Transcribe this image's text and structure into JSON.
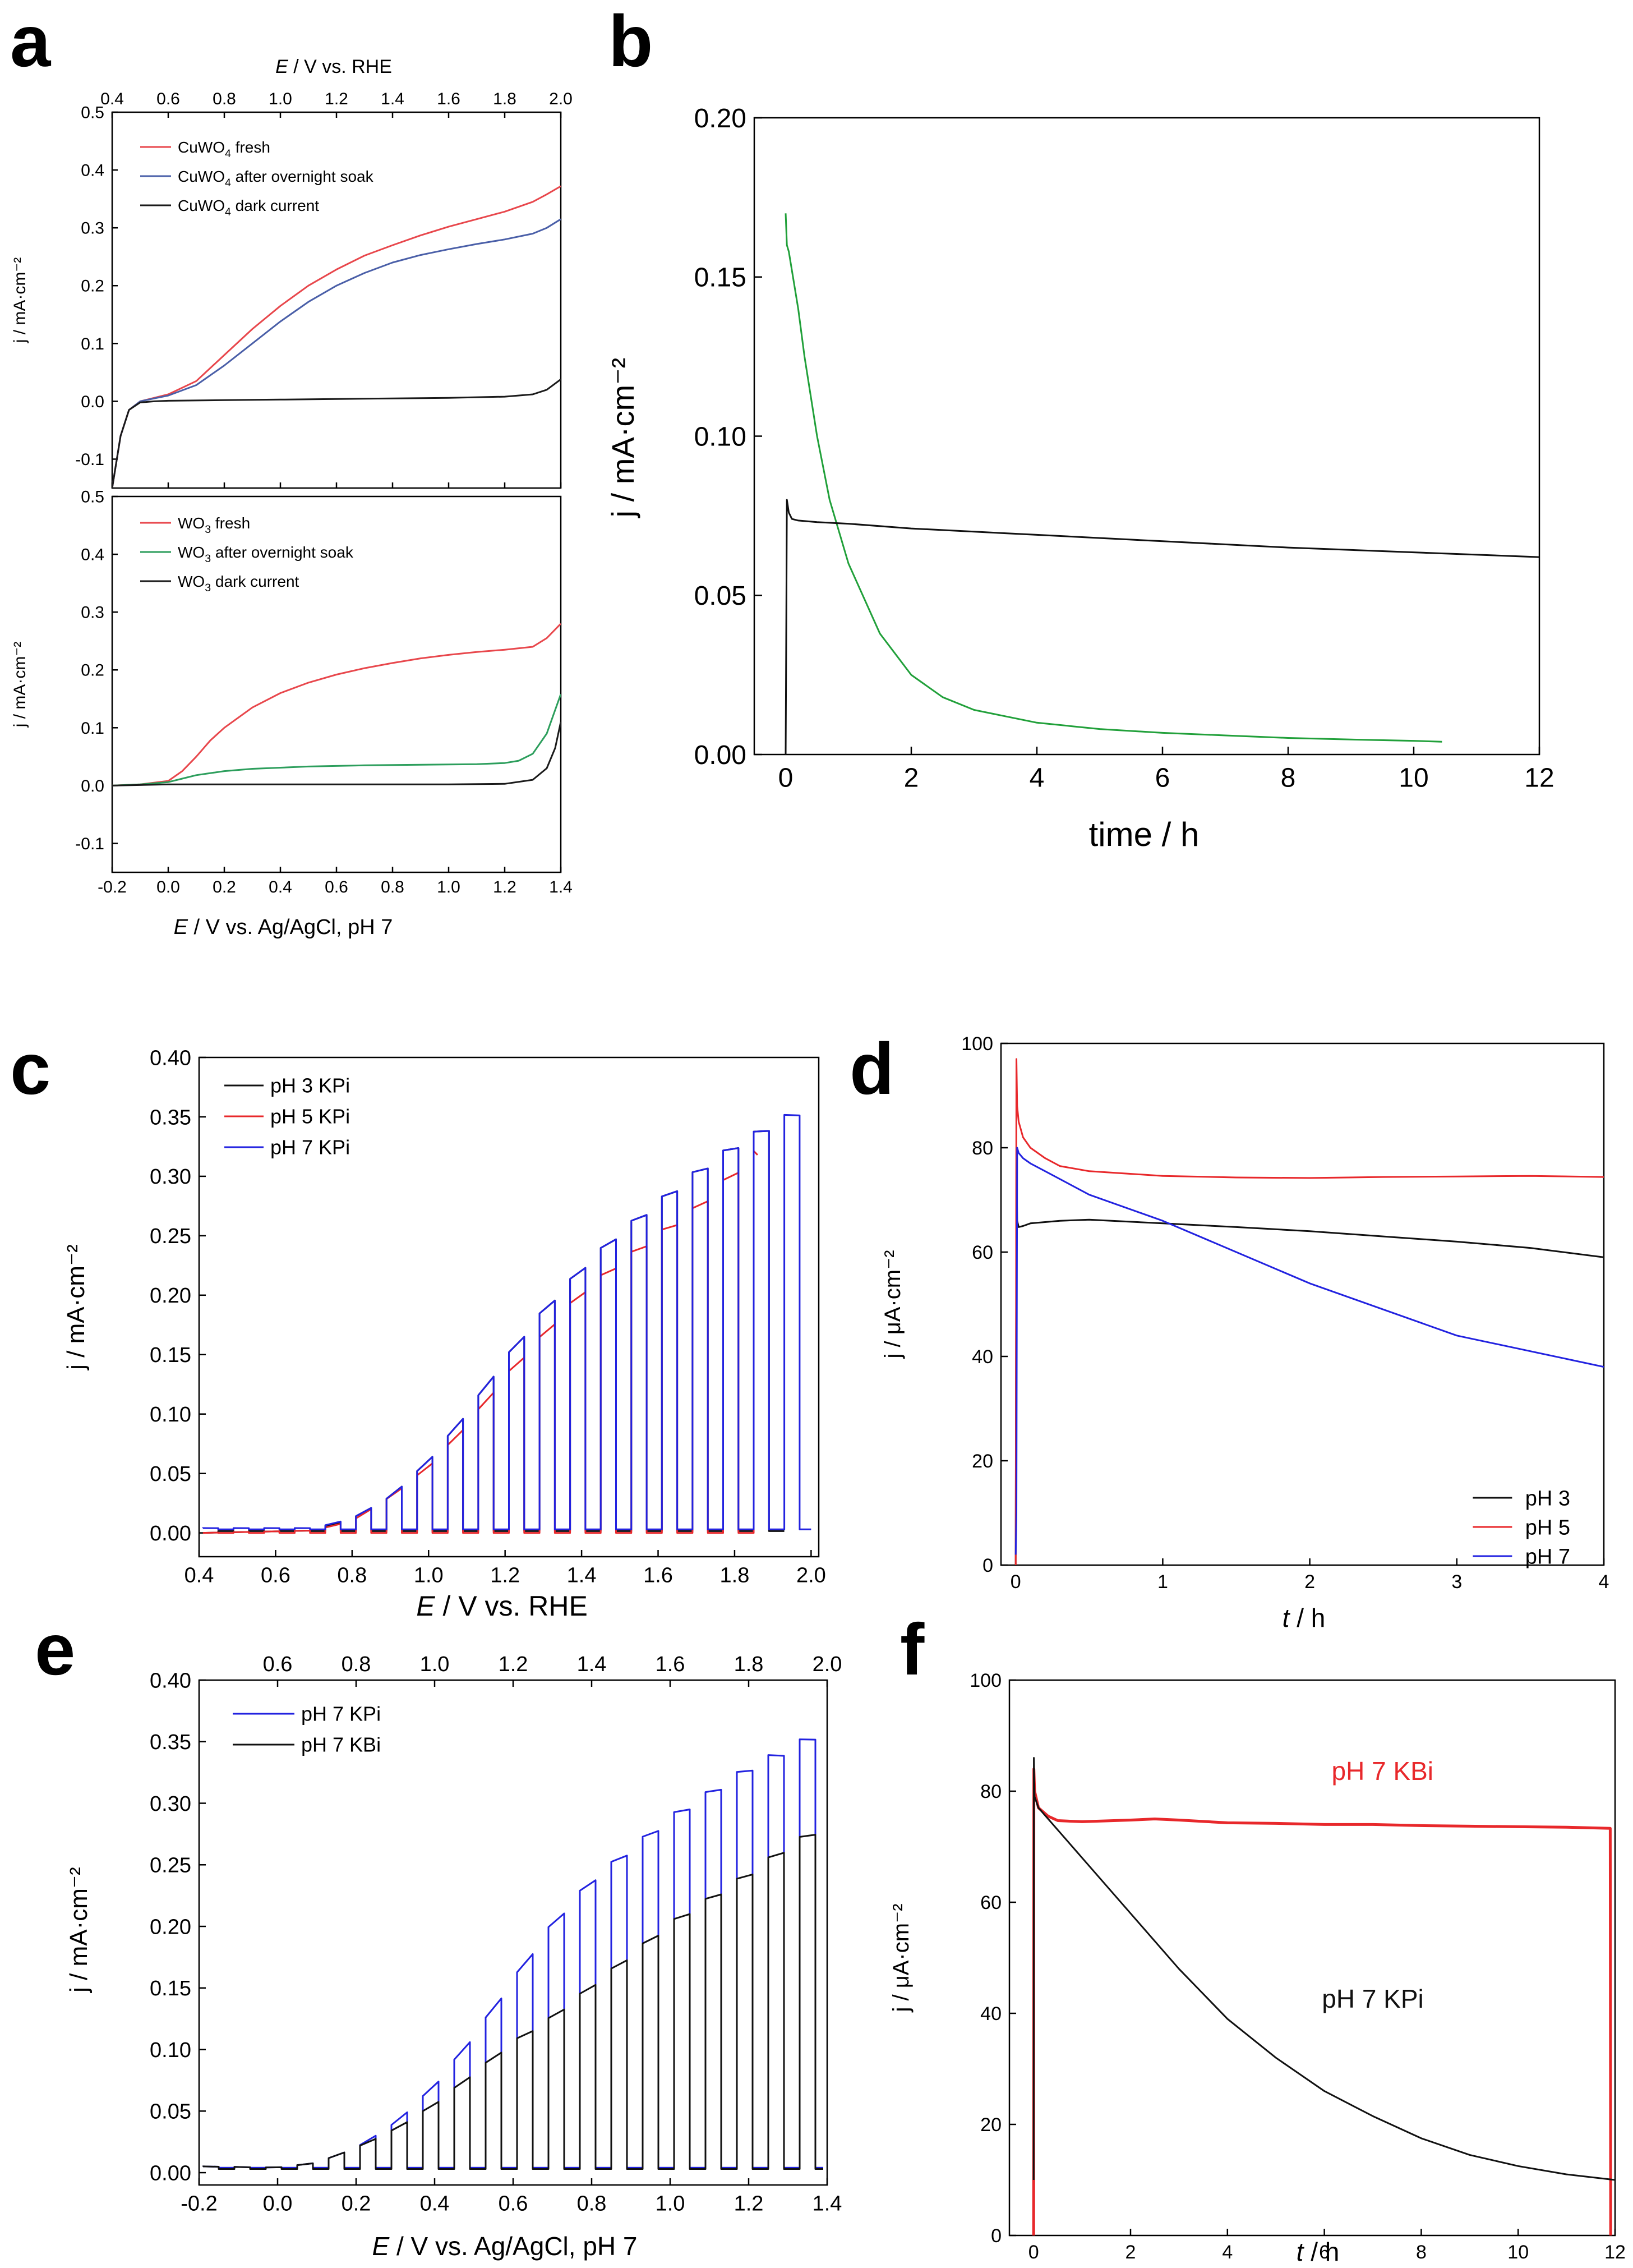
{
  "panels": {
    "a": {
      "letter": "a",
      "xlabel_var": "E",
      "xlabel_text": " / V vs. Ag/AgCl, pH 7",
      "xlabel_top_var": "E",
      "xlabel_top_text": " / V vs. RHE"
    },
    "b": {
      "letter": "b",
      "xlabel": "time / h"
    },
    "c": {
      "letter": "c",
      "xlabel_var": "E",
      "xlabel_text": " / V vs. RHE"
    },
    "d": {
      "letter": "d",
      "xlabel_var": "t",
      "xlabel_text": " / h"
    },
    "e": {
      "letter": "e",
      "xlabel_var": "E",
      "xlabel_text": " / V vs. Ag/AgCl, pH 7"
    },
    "f": {
      "letter": "f",
      "xlabel_var": "t",
      "xlabel_text": " / h"
    }
  },
  "chart_data": [
    {
      "id": "a-top",
      "type": "line",
      "xlabel": "E / V vs. Ag/AgCl, pH 7",
      "ylabel": "j / mA·cm⁻²",
      "xlim": [
        -0.2,
        1.4
      ],
      "ylim": [
        -0.15,
        0.5
      ],
      "xticks": [
        "-0.2",
        "0.0",
        "0.2",
        "0.4",
        "0.6",
        "0.8",
        "1.0",
        "1.2",
        "1.4"
      ],
      "yticks": [
        "-0.1",
        "0.0",
        "0.1",
        "0.2",
        "0.3",
        "0.4",
        "0.5"
      ],
      "top_axis": {
        "label": "E / V vs. RHE",
        "ticks": [
          "0.4",
          "0.6",
          "0.8",
          "1.0",
          "1.2",
          "1.4",
          "1.6",
          "1.8",
          "2.0"
        ]
      },
      "series": [
        {
          "name": "CuWO4 fresh",
          "legend_main": "CuWO",
          "legend_sub": "4",
          "legend_rest": " fresh",
          "color": "#e8474c",
          "x": [
            -0.2,
            -0.17,
            -0.14,
            -0.1,
            -0.05,
            0.0,
            0.1,
            0.2,
            0.3,
            0.4,
            0.5,
            0.6,
            0.7,
            0.8,
            0.9,
            1.0,
            1.1,
            1.2,
            1.3,
            1.35,
            1.4
          ],
          "y": [
            -0.15,
            -0.06,
            -0.015,
            0.0,
            0.006,
            0.012,
            0.035,
            0.08,
            0.125,
            0.165,
            0.2,
            0.228,
            0.252,
            0.27,
            0.287,
            0.302,
            0.315,
            0.328,
            0.345,
            0.358,
            0.372
          ]
        },
        {
          "name": "CuWO4 after overnight soak",
          "legend_main": "CuWO",
          "legend_sub": "4",
          "legend_rest": " after overnight soak",
          "color": "#4a5fa8",
          "x": [
            -0.2,
            -0.17,
            -0.14,
            -0.1,
            -0.05,
            0.0,
            0.1,
            0.2,
            0.3,
            0.4,
            0.5,
            0.6,
            0.7,
            0.8,
            0.9,
            1.0,
            1.1,
            1.2,
            1.3,
            1.35,
            1.4
          ],
          "y": [
            -0.15,
            -0.06,
            -0.015,
            0.0,
            0.005,
            0.01,
            0.028,
            0.062,
            0.1,
            0.138,
            0.172,
            0.2,
            0.222,
            0.24,
            0.253,
            0.263,
            0.272,
            0.28,
            0.29,
            0.3,
            0.315
          ]
        },
        {
          "name": "CuWO4 dark current",
          "legend_main": "CuWO",
          "legend_sub": "4",
          "legend_rest": " dark current",
          "color": "#1a1a1a",
          "x": [
            -0.2,
            -0.17,
            -0.14,
            -0.1,
            -0.05,
            0.0,
            0.2,
            0.4,
            0.6,
            0.8,
            1.0,
            1.2,
            1.3,
            1.35,
            1.4
          ],
          "y": [
            -0.15,
            -0.06,
            -0.015,
            -0.002,
            0.0,
            0.001,
            0.002,
            0.003,
            0.004,
            0.005,
            0.006,
            0.008,
            0.012,
            0.02,
            0.038
          ]
        }
      ]
    },
    {
      "id": "a-bottom",
      "type": "line",
      "xlabel": "E / V vs. Ag/AgCl, pH 7",
      "ylabel": "j / mA·cm⁻²",
      "xlim": [
        -0.2,
        1.4
      ],
      "ylim": [
        -0.15,
        0.5
      ],
      "xticks": [
        "-0.2",
        "0.0",
        "0.2",
        "0.4",
        "0.6",
        "0.8",
        "1.0",
        "1.2",
        "1.4"
      ],
      "yticks": [
        "-0.1",
        "0.0",
        "0.1",
        "0.2",
        "0.3",
        "0.4",
        "0.5"
      ],
      "series": [
        {
          "name": "WO3 fresh",
          "legend_main": "WO",
          "legend_sub": "3",
          "legend_rest": " fresh",
          "color": "#e8474c",
          "x": [
            -0.2,
            -0.1,
            0.0,
            0.05,
            0.1,
            0.15,
            0.2,
            0.3,
            0.4,
            0.5,
            0.6,
            0.7,
            0.8,
            0.9,
            1.0,
            1.1,
            1.2,
            1.3,
            1.35,
            1.4
          ],
          "y": [
            0.0,
            0.002,
            0.008,
            0.025,
            0.05,
            0.078,
            0.1,
            0.135,
            0.16,
            0.178,
            0.192,
            0.203,
            0.212,
            0.22,
            0.226,
            0.231,
            0.235,
            0.24,
            0.255,
            0.28
          ]
        },
        {
          "name": "WO3 after overnight soak",
          "legend_main": "WO",
          "legend_sub": "3",
          "legend_rest": " after overnight soak",
          "color": "#2c9e5c",
          "x": [
            -0.2,
            -0.1,
            0.0,
            0.05,
            0.1,
            0.2,
            0.3,
            0.5,
            0.7,
            0.9,
            1.1,
            1.2,
            1.25,
            1.3,
            1.35,
            1.4
          ],
          "y": [
            0.0,
            0.002,
            0.006,
            0.012,
            0.018,
            0.025,
            0.029,
            0.033,
            0.035,
            0.036,
            0.037,
            0.039,
            0.043,
            0.055,
            0.09,
            0.158
          ]
        },
        {
          "name": "WO3 dark current",
          "legend_main": "WO",
          "legend_sub": "3",
          "legend_rest": " dark current",
          "color": "#1a1a1a",
          "x": [
            -0.2,
            -0.1,
            0.0,
            0.2,
            0.4,
            0.6,
            0.8,
            1.0,
            1.2,
            1.3,
            1.35,
            1.38,
            1.4
          ],
          "y": [
            0.0,
            0.001,
            0.002,
            0.002,
            0.002,
            0.002,
            0.002,
            0.002,
            0.003,
            0.01,
            0.03,
            0.065,
            0.11
          ]
        }
      ]
    },
    {
      "id": "b",
      "type": "line",
      "xlabel": "time / h",
      "ylabel": "j / mA·cm⁻²",
      "xlim": [
        -0.5,
        12
      ],
      "ylim": [
        0,
        0.2
      ],
      "xticks": [
        "0",
        "2",
        "4",
        "6",
        "8",
        "10",
        "12"
      ],
      "yticks": [
        "0.00",
        "0.05",
        "0.10",
        "0.15",
        "0.20"
      ],
      "series": [
        {
          "name": "green",
          "color": "#21a03a",
          "x": [
            0,
            0.02,
            0.05,
            0.1,
            0.2,
            0.3,
            0.5,
            0.7,
            1.0,
            1.5,
            2.0,
            2.5,
            3,
            4,
            5,
            6,
            7,
            8,
            9,
            10,
            10.45
          ],
          "y": [
            0.17,
            0.16,
            0.158,
            0.152,
            0.14,
            0.125,
            0.1,
            0.08,
            0.06,
            0.038,
            0.025,
            0.018,
            0.014,
            0.01,
            0.008,
            0.0068,
            0.006,
            0.0052,
            0.0047,
            0.0043,
            0.004
          ]
        },
        {
          "name": "black",
          "color": "#111111",
          "x": [
            0,
            0.02,
            0.05,
            0.1,
            0.2,
            0.5,
            1,
            2,
            4,
            6,
            8,
            10,
            12
          ],
          "y": [
            0.0,
            0.08,
            0.076,
            0.074,
            0.0735,
            0.073,
            0.0725,
            0.071,
            0.069,
            0.067,
            0.065,
            0.0635,
            0.062
          ]
        }
      ]
    },
    {
      "id": "c",
      "type": "line",
      "xlabel": "E / V vs. RHE",
      "ylabel": "j / mA·cm⁻²",
      "xlim": [
        0.4,
        2.02
      ],
      "ylim": [
        -0.02,
        0.4
      ],
      "xticks": [
        "0.4",
        "0.6",
        "0.8",
        "1.0",
        "1.2",
        "1.4",
        "1.6",
        "1.8",
        "2.0"
      ],
      "yticks": [
        "0.00",
        "0.05",
        "0.10",
        "0.15",
        "0.20",
        "0.25",
        "0.30",
        "0.35",
        "0.40"
      ],
      "legend": [
        "pH 3 KPi",
        "pH 5 KPi",
        "pH 7 KPi"
      ],
      "chopped": true,
      "series": [
        {
          "name": "pH 3 KPi",
          "color": "#111111",
          "start": 0.41,
          "end": 1.93,
          "dark": 0.0015,
          "envelope": {
            "x": [
              0.41,
              0.7,
              0.8,
              0.9,
              1.0,
              1.1,
              1.2,
              1.3,
              1.4,
              1.5,
              1.6,
              1.7,
              1.8,
              1.9,
              1.93
            ],
            "y": [
              0.0,
              0.002,
              0.012,
              0.03,
              0.06,
              0.1,
              0.145,
              0.185,
              0.22,
              0.25,
              0.275,
              0.3,
              0.322,
              0.34,
              0.342
            ]
          }
        },
        {
          "name": "pH 5 KPi",
          "color": "#e8282b",
          "start": 0.41,
          "end": 1.86,
          "dark": 0.0,
          "envelope": {
            "x": [
              0.41,
              0.7,
              0.8,
              0.9,
              1.0,
              1.1,
              1.2,
              1.3,
              1.4,
              1.5,
              1.6,
              1.7,
              1.8,
              1.86
            ],
            "y": [
              0.0,
              0.002,
              0.01,
              0.03,
              0.055,
              0.09,
              0.13,
              0.165,
              0.2,
              0.225,
              0.248,
              0.27,
              0.3,
              0.318
            ]
          }
        },
        {
          "name": "pH 7 KPi",
          "color": "#2222e0",
          "start": 0.41,
          "end": 2.0,
          "dark": 0.003,
          "envelope": {
            "x": [
              0.41,
              0.7,
              0.8,
              0.9,
              1.0,
              1.1,
              1.2,
              1.3,
              1.4,
              1.5,
              1.6,
              1.7,
              1.8,
              1.9,
              2.0
            ],
            "y": [
              0.004,
              0.004,
              0.012,
              0.03,
              0.06,
              0.1,
              0.145,
              0.185,
              0.22,
              0.25,
              0.275,
              0.3,
              0.322,
              0.34,
              0.356
            ]
          }
        }
      ]
    },
    {
      "id": "d",
      "type": "line",
      "xlabel": "t / h",
      "ylabel": "j / μA·cm⁻²",
      "xlim": [
        -0.1,
        4
      ],
      "ylim": [
        0,
        100
      ],
      "xticks": [
        "0",
        "1",
        "2",
        "3",
        "4"
      ],
      "yticks": [
        "0",
        "20",
        "40",
        "60",
        "80",
        "100"
      ],
      "legend": [
        "pH 3",
        "pH 5",
        "pH 7"
      ],
      "series": [
        {
          "name": "pH 3",
          "color": "#111111",
          "x": [
            0,
            0.005,
            0.01,
            0.02,
            0.05,
            0.1,
            0.3,
            0.5,
            1,
            1.5,
            2,
            2.5,
            3,
            3.5,
            4
          ],
          "y": [
            0,
            80,
            66,
            64.8,
            65,
            65.5,
            66,
            66.2,
            65.5,
            64.8,
            64,
            63,
            62,
            60.8,
            59
          ]
        },
        {
          "name": "pH 5",
          "color": "#e8282b",
          "x": [
            0,
            0.005,
            0.01,
            0.02,
            0.05,
            0.1,
            0.2,
            0.3,
            0.5,
            1,
            1.5,
            2,
            2.5,
            3,
            3.5,
            4
          ],
          "y": [
            0,
            97,
            88,
            85,
            82,
            80,
            78,
            76.5,
            75.5,
            74.6,
            74.3,
            74.2,
            74.4,
            74.5,
            74.6,
            74.4
          ]
        },
        {
          "name": "pH 7",
          "color": "#2222e0",
          "x": [
            0,
            0.005,
            0.01,
            0.02,
            0.05,
            0.1,
            0.2,
            0.5,
            1,
            1.5,
            2,
            2.5,
            3,
            3.5,
            4
          ],
          "y": [
            2,
            10,
            80,
            79,
            78,
            77,
            75.5,
            71,
            66,
            60,
            54,
            49,
            44,
            41,
            38
          ]
        }
      ]
    },
    {
      "id": "e",
      "type": "line",
      "xlabel": "E / V vs. Ag/AgCl, pH 7",
      "ylabel": "j / mA·cm⁻²",
      "xlim": [
        -0.2,
        1.4
      ],
      "ylim": [
        -0.01,
        0.4
      ],
      "xticks": [
        "-0.2",
        "0.0",
        "0.2",
        "0.4",
        "0.6",
        "0.8",
        "1.0",
        "1.2",
        "1.4"
      ],
      "yticks": [
        "0.00",
        "0.05",
        "0.10",
        "0.15",
        "0.20",
        "0.25",
        "0.30",
        "0.35",
        "0.40"
      ],
      "top_axis": {
        "label": "",
        "ticks": [
          "0.6",
          "0.8",
          "1.0",
          "1.2",
          "1.4",
          "1.6",
          "1.8",
          "2.0"
        ]
      },
      "legend": [
        "pH 7 KPi",
        "pH 7 KBi"
      ],
      "chopped": true,
      "series": [
        {
          "name": "pH 7 KPi",
          "color": "#2222e0",
          "start": -0.19,
          "end": 1.39,
          "dark": 0.004,
          "envelope": {
            "x": [
              -0.19,
              0.0,
              0.1,
              0.2,
              0.3,
              0.4,
              0.5,
              0.6,
              0.7,
              0.8,
              0.9,
              1.0,
              1.1,
              1.2,
              1.3,
              1.39
            ],
            "y": [
              0.005,
              0.004,
              0.008,
              0.02,
              0.04,
              0.07,
              0.11,
              0.155,
              0.2,
              0.235,
              0.26,
              0.285,
              0.305,
              0.325,
              0.34,
              0.355
            ]
          }
        },
        {
          "name": "pH 7 KBi",
          "color": "#111111",
          "start": -0.19,
          "end": 1.39,
          "dark": 0.003,
          "envelope": {
            "x": [
              -0.19,
              0.0,
              0.1,
              0.2,
              0.3,
              0.4,
              0.5,
              0.6,
              0.7,
              0.8,
              0.9,
              1.0,
              1.1,
              1.2,
              1.3,
              1.39
            ],
            "y": [
              0.005,
              0.004,
              0.008,
              0.02,
              0.035,
              0.055,
              0.08,
              0.105,
              0.125,
              0.15,
              0.175,
              0.2,
              0.22,
              0.24,
              0.262,
              0.278
            ]
          }
        }
      ]
    },
    {
      "id": "f",
      "type": "line",
      "xlabel": "t / h",
      "ylabel": "j / μA·cm⁻²",
      "xlim": [
        -0.5,
        12
      ],
      "ylim": [
        0,
        100
      ],
      "xticks": [
        "0",
        "2",
        "4",
        "6",
        "8",
        "10",
        "12"
      ],
      "yticks": [
        "0",
        "20",
        "40",
        "60",
        "80",
        "100"
      ],
      "annotations": [
        {
          "text": "pH 7 KBi",
          "x": 7.2,
          "y": 82,
          "color": "#e8282b"
        },
        {
          "text": "pH 7 KPi",
          "x": 7.0,
          "y": 41,
          "color": "#111111"
        }
      ],
      "series": [
        {
          "name": "pH 7 KBi",
          "color": "#e8282b",
          "x": [
            0,
            0.005,
            0.02,
            0.1,
            0.3,
            0.5,
            1,
            2,
            2.5,
            3,
            4,
            5,
            6,
            7,
            8,
            9,
            10,
            11,
            11.9,
            11.91
          ],
          "y": [
            0,
            84,
            80,
            77,
            75.5,
            74.7,
            74.5,
            74.8,
            75,
            74.8,
            74.3,
            74.2,
            74,
            74,
            73.8,
            73.7,
            73.6,
            73.5,
            73.3,
            0
          ]
        },
        {
          "name": "pH 7 KPi",
          "color": "#111111",
          "x": [
            0,
            0.005,
            0.02,
            0.1,
            0.3,
            0.5,
            1,
            2,
            3,
            4,
            5,
            6,
            7,
            8,
            9,
            10,
            11,
            12
          ],
          "y": [
            10,
            86,
            79,
            77,
            75,
            73,
            68,
            58,
            48,
            39,
            32,
            26,
            21.5,
            17.5,
            14.5,
            12.5,
            11,
            10
          ]
        }
      ]
    }
  ]
}
